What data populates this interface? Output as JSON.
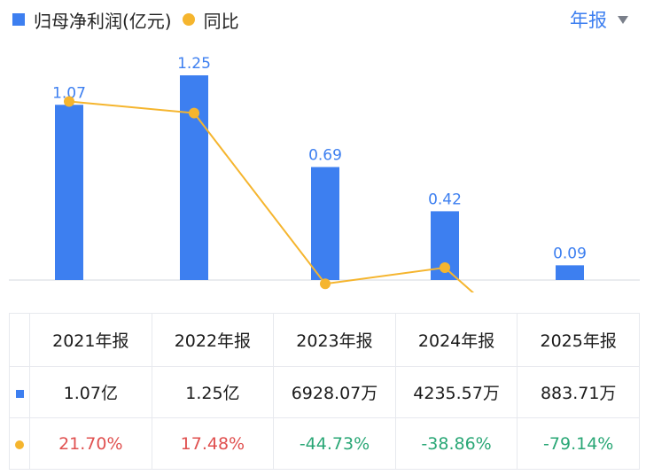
{
  "legend": {
    "bar_label": "归母净利润(亿元)",
    "line_label": "同比"
  },
  "period_selector": {
    "label": "年报"
  },
  "colors": {
    "bar": "#3d7ff0",
    "line": "#f5b52e",
    "positive": "#e0504f",
    "negative": "#2aa776"
  },
  "chart_data": {
    "type": "bar",
    "categories": [
      "2021年报",
      "2022年报",
      "2023年报",
      "2024年报",
      "2025年报"
    ],
    "series": [
      {
        "name": "归母净利润(亿元)",
        "type": "bar",
        "values": [
          1.07,
          1.25,
          0.69,
          0.42,
          0.09
        ],
        "labels": [
          "1.07",
          "1.25",
          "0.69",
          "0.42",
          "0.09"
        ]
      },
      {
        "name": "同比",
        "type": "line",
        "values": [
          21.7,
          17.48,
          -44.73,
          -38.86,
          -79.14
        ]
      }
    ]
  },
  "table": {
    "headers": [
      "2021年报",
      "2022年报",
      "2023年报",
      "2024年报",
      "2025年报"
    ],
    "profit_row": [
      "1.07亿",
      "1.25亿",
      "6928.07万",
      "4235.57万",
      "883.71万"
    ],
    "yoy_row": [
      "21.70%",
      "17.48%",
      "-44.73%",
      "-38.86%",
      "-79.14%"
    ]
  }
}
